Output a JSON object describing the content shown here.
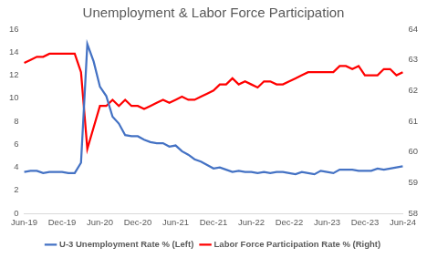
{
  "chart_data": {
    "type": "line",
    "title": "Unemployment & Labor Force Participation",
    "categories": [
      "Jun-19",
      null,
      null,
      null,
      null,
      null,
      "Dec-19",
      null,
      null,
      null,
      null,
      null,
      "Jun-20",
      null,
      null,
      null,
      null,
      null,
      "Dec-20",
      null,
      null,
      null,
      null,
      null,
      "Jun-21",
      null,
      null,
      null,
      null,
      null,
      "Dec-21",
      null,
      null,
      null,
      null,
      null,
      "Jun-22",
      null,
      null,
      null,
      null,
      null,
      "Dec-22",
      null,
      null,
      null,
      null,
      null,
      "Jun-23",
      null,
      null,
      null,
      null,
      null,
      "Dec-23",
      null,
      null,
      null,
      null,
      null,
      "Jun-24"
    ],
    "series": [
      {
        "name": "U-3 Unemployment Rate % (Left)",
        "color": "#4472c4",
        "axis": "y",
        "marker": "none",
        "line_style": "solid",
        "values": [
          3.6,
          3.7,
          3.7,
          3.5,
          3.6,
          3.6,
          3.6,
          3.5,
          3.5,
          4.4,
          14.7,
          13.2,
          11.0,
          10.2,
          8.4,
          7.8,
          6.8,
          6.7,
          6.7,
          6.4,
          6.2,
          6.1,
          6.1,
          5.8,
          5.9,
          5.4,
          5.1,
          4.7,
          4.5,
          4.2,
          3.9,
          4.0,
          3.8,
          3.6,
          3.7,
          3.6,
          3.6,
          3.5,
          3.6,
          3.5,
          3.6,
          3.6,
          3.5,
          3.4,
          3.6,
          3.5,
          3.4,
          3.7,
          3.6,
          3.5,
          3.8,
          3.8,
          3.8,
          3.7,
          3.7,
          3.7,
          3.9,
          3.8,
          3.9,
          4.0,
          4.1
        ]
      },
      {
        "name": "Labor Force Participation Rate % (Right)",
        "color": "#ff0000",
        "axis": "y2",
        "marker": "none",
        "line_style": "solid",
        "values": [
          62.9,
          63.0,
          63.1,
          63.1,
          63.2,
          63.2,
          63.2,
          63.2,
          63.2,
          62.6,
          60.1,
          60.8,
          61.5,
          61.5,
          61.7,
          61.5,
          61.7,
          61.5,
          61.5,
          61.4,
          61.5,
          61.6,
          61.7,
          61.6,
          61.7,
          61.8,
          61.7,
          61.7,
          61.8,
          61.9,
          62.0,
          62.2,
          62.2,
          62.4,
          62.2,
          62.3,
          62.2,
          62.1,
          62.3,
          62.3,
          62.2,
          62.2,
          62.3,
          62.4,
          62.5,
          62.6,
          62.6,
          62.6,
          62.6,
          62.6,
          62.8,
          62.8,
          62.7,
          62.8,
          62.5,
          62.5,
          62.5,
          62.7,
          62.7,
          62.5,
          62.6
        ]
      }
    ],
    "ylim": [
      0,
      16
    ],
    "yticks": [
      0,
      2,
      4,
      6,
      8,
      10,
      12,
      14,
      16
    ],
    "y2lim": [
      58,
      64
    ],
    "y2ticks": [
      58,
      59,
      60,
      61,
      62,
      63,
      64
    ],
    "grid": false,
    "legend": "bottom"
  }
}
